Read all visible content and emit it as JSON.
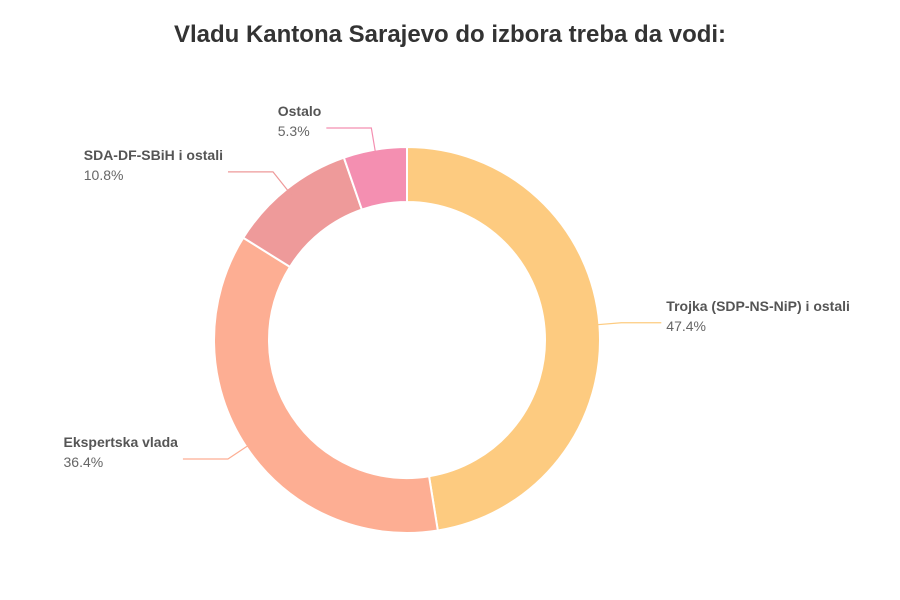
{
  "chart_data": {
    "type": "donut",
    "title": "Vladu Kantona Sarajevo do izbora treba da vodi:",
    "categories": [
      "Trojka (SDP-NS-NiP) i ostali",
      "Ekspertska vlada",
      "SDA-DF-SBiH i ostali",
      "Ostalo"
    ],
    "values": [
      47.4,
      36.4,
      10.8,
      5.3
    ],
    "value_labels": [
      "47.4%",
      "36.4%",
      "10.8%",
      "5.3%"
    ],
    "colors": [
      "#fdcb80",
      "#fdae93",
      "#ee9a9a",
      "#f48fb1"
    ]
  }
}
